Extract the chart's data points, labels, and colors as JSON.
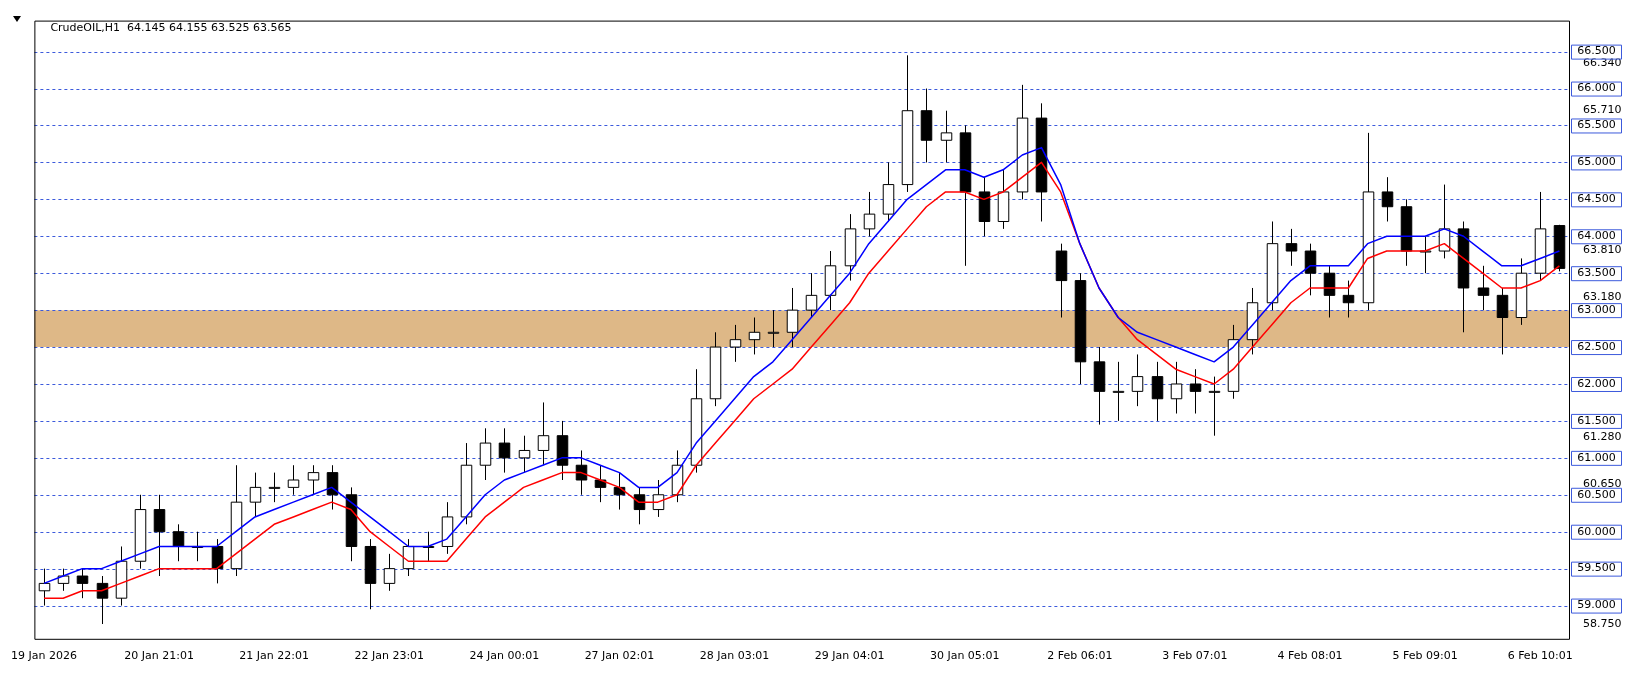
{
  "chart_data": {
    "type": "candlestick",
    "title": "CrudeOIL,H1  64.145 64.155 63.525 63.565",
    "categories": [
      "19 Jan 2026",
      null,
      null,
      null,
      null,
      null,
      "20 Jan 21:01",
      null,
      null,
      null,
      null,
      null,
      "21 Jan 22:01",
      null,
      null,
      null,
      null,
      null,
      "22 Jan 23:01",
      null,
      null,
      null,
      null,
      null,
      "24 Jan 00:01",
      null,
      null,
      null,
      null,
      null,
      "27 Jan 02:01",
      null,
      null,
      null,
      null,
      null,
      "28 Jan 03:01",
      null,
      null,
      null,
      null,
      null,
      "29 Jan 04:01",
      null,
      null,
      null,
      null,
      null,
      "30 Jan 05:01",
      null,
      null,
      null,
      null,
      null,
      "2 Feb 06:01",
      null,
      null,
      null,
      null,
      null,
      "3 Feb 07:01",
      null,
      null,
      null,
      null,
      null,
      "4 Feb 08:01",
      null,
      null,
      null,
      null,
      null,
      "5 Feb 09:01",
      null,
      null,
      null,
      null,
      null,
      "6 Feb 10:01",
      null
    ],
    "ohlc": [
      [
        59.2,
        59.5,
        59.0,
        59.3
      ],
      [
        59.3,
        59.5,
        59.2,
        59.4
      ],
      [
        59.4,
        59.5,
        59.1,
        59.3
      ],
      [
        59.3,
        59.4,
        58.75,
        59.1
      ],
      [
        59.1,
        59.8,
        59.0,
        59.6
      ],
      [
        59.6,
        60.5,
        59.5,
        60.3
      ],
      [
        60.3,
        60.5,
        59.4,
        60.0
      ],
      [
        60.0,
        60.1,
        59.6,
        59.8
      ],
      [
        59.8,
        60.0,
        59.6,
        59.8
      ],
      [
        59.8,
        59.9,
        59.3,
        59.5
      ],
      [
        59.5,
        60.9,
        59.4,
        60.4
      ],
      [
        60.4,
        60.8,
        60.2,
        60.6
      ],
      [
        60.6,
        60.8,
        60.4,
        60.6
      ],
      [
        60.6,
        60.9,
        60.5,
        60.7
      ],
      [
        60.7,
        60.9,
        60.5,
        60.8
      ],
      [
        60.8,
        60.9,
        60.3,
        60.5
      ],
      [
        60.5,
        60.6,
        59.6,
        59.8
      ],
      [
        59.8,
        59.9,
        58.95,
        59.3
      ],
      [
        59.3,
        59.7,
        59.2,
        59.5
      ],
      [
        59.5,
        59.9,
        59.4,
        59.8
      ],
      [
        59.8,
        60.0,
        59.6,
        59.8
      ],
      [
        59.8,
        60.4,
        59.7,
        60.2
      ],
      [
        60.2,
        61.2,
        60.1,
        60.9
      ],
      [
        60.9,
        61.4,
        60.7,
        61.2
      ],
      [
        61.2,
        61.4,
        60.8,
        61.0
      ],
      [
        61.0,
        61.3,
        60.8,
        61.1
      ],
      [
        61.1,
        61.75,
        60.9,
        61.3
      ],
      [
        61.3,
        61.5,
        60.7,
        60.9
      ],
      [
        60.9,
        61.1,
        60.5,
        60.7
      ],
      [
        60.7,
        60.9,
        60.4,
        60.6
      ],
      [
        60.6,
        60.8,
        60.3,
        60.5
      ],
      [
        60.5,
        60.6,
        60.1,
        60.3
      ],
      [
        60.3,
        60.7,
        60.2,
        60.5
      ],
      [
        60.5,
        61.1,
        60.4,
        60.9
      ],
      [
        60.9,
        62.2,
        60.8,
        61.8
      ],
      [
        61.8,
        62.7,
        61.7,
        62.5
      ],
      [
        62.5,
        62.8,
        62.3,
        62.6
      ],
      [
        62.6,
        62.9,
        62.4,
        62.7
      ],
      [
        62.7,
        63.0,
        62.5,
        62.7
      ],
      [
        62.7,
        63.3,
        62.5,
        63.0
      ],
      [
        63.0,
        63.5,
        62.9,
        63.2
      ],
      [
        63.2,
        63.8,
        63.0,
        63.6
      ],
      [
        63.6,
        64.3,
        63.4,
        64.1
      ],
      [
        64.1,
        64.6,
        64.0,
        64.3
      ],
      [
        64.3,
        65.0,
        64.2,
        64.7
      ],
      [
        64.7,
        66.45,
        64.6,
        65.7
      ],
      [
        65.7,
        66.0,
        65.0,
        65.3
      ],
      [
        65.3,
        65.7,
        65.0,
        65.4
      ],
      [
        65.4,
        65.5,
        63.6,
        64.6
      ],
      [
        64.6,
        64.8,
        64.0,
        64.2
      ],
      [
        64.2,
        64.9,
        64.1,
        64.6
      ],
      [
        64.6,
        66.05,
        64.5,
        65.6
      ],
      [
        65.6,
        65.8,
        64.2,
        64.6
      ],
      [
        63.8,
        63.9,
        62.9,
        63.4
      ],
      [
        63.4,
        63.5,
        62.0,
        62.3
      ],
      [
        62.3,
        62.5,
        61.45,
        61.9
      ],
      [
        61.9,
        62.3,
        61.5,
        61.9
      ],
      [
        61.9,
        62.4,
        61.7,
        62.1
      ],
      [
        62.1,
        62.3,
        61.5,
        61.8
      ],
      [
        61.8,
        62.3,
        61.6,
        62.0
      ],
      [
        62.0,
        62.2,
        61.6,
        61.9
      ],
      [
        61.9,
        62.1,
        61.3,
        61.9
      ],
      [
        61.9,
        62.8,
        61.8,
        62.6
      ],
      [
        62.6,
        63.3,
        62.4,
        63.1
      ],
      [
        63.1,
        64.2,
        63.0,
        63.9
      ],
      [
        63.9,
        64.1,
        63.6,
        63.8
      ],
      [
        63.8,
        63.9,
        63.2,
        63.5
      ],
      [
        63.5,
        63.6,
        62.9,
        63.2
      ],
      [
        63.2,
        63.4,
        62.9,
        63.1
      ],
      [
        63.1,
        65.4,
        63.0,
        64.6
      ],
      [
        64.6,
        64.8,
        64.2,
        64.4
      ],
      [
        64.4,
        64.5,
        63.6,
        63.8
      ],
      [
        63.8,
        64.0,
        63.5,
        63.8
      ],
      [
        63.8,
        64.7,
        63.7,
        64.1
      ],
      [
        64.1,
        64.2,
        62.7,
        63.3
      ],
      [
        63.3,
        63.6,
        63.0,
        63.2
      ],
      [
        63.2,
        63.3,
        62.4,
        62.9
      ],
      [
        62.9,
        63.7,
        62.8,
        63.5
      ],
      [
        63.5,
        64.6,
        63.4,
        64.1
      ],
      [
        64.145,
        64.155,
        63.525,
        63.565
      ]
    ],
    "series": [
      {
        "type": "line",
        "color": "#0000ff",
        "values": [
          59.3,
          59.4,
          59.5,
          59.5,
          59.6,
          59.7,
          59.8,
          59.8,
          59.8,
          59.8,
          60.0,
          60.2,
          60.3,
          60.4,
          60.5,
          60.6,
          60.4,
          60.2,
          60.0,
          59.8,
          59.8,
          59.9,
          60.2,
          60.5,
          60.7,
          60.8,
          60.9,
          61.0,
          61.0,
          60.9,
          60.8,
          60.6,
          60.6,
          60.8,
          61.2,
          61.5,
          61.8,
          62.1,
          62.3,
          62.6,
          62.9,
          63.2,
          63.5,
          63.9,
          64.2,
          64.5,
          64.7,
          64.9,
          64.9,
          64.8,
          64.9,
          65.1,
          65.2,
          64.7,
          63.9,
          63.3,
          62.9,
          62.7,
          62.6,
          62.5,
          62.4,
          62.3,
          62.5,
          62.8,
          63.1,
          63.4,
          63.6,
          63.6,
          63.6,
          63.9,
          64.0,
          64.0,
          64.0,
          64.1,
          64.0,
          63.8,
          63.6,
          63.6,
          63.7,
          63.8
        ]
      },
      {
        "type": "line",
        "color": "#ff0000",
        "values": [
          59.1,
          59.1,
          59.2,
          59.2,
          59.3,
          59.4,
          59.5,
          59.5,
          59.5,
          59.5,
          59.7,
          59.9,
          60.1,
          60.2,
          60.3,
          60.4,
          60.3,
          60.0,
          59.8,
          59.6,
          59.6,
          59.6,
          59.9,
          60.2,
          60.4,
          60.6,
          60.7,
          60.8,
          60.8,
          60.7,
          60.6,
          60.4,
          60.4,
          60.5,
          60.9,
          61.2,
          61.5,
          61.8,
          62.0,
          62.2,
          62.5,
          62.8,
          63.1,
          63.5,
          63.8,
          64.1,
          64.4,
          64.6,
          64.6,
          64.5,
          64.6,
          64.8,
          65.0,
          64.6,
          63.9,
          63.3,
          62.9,
          62.6,
          62.4,
          62.2,
          62.1,
          62.0,
          62.2,
          62.5,
          62.8,
          63.1,
          63.3,
          63.3,
          63.3,
          63.7,
          63.8,
          63.8,
          63.8,
          63.9,
          63.7,
          63.5,
          63.3,
          63.3,
          63.4,
          63.6
        ]
      }
    ],
    "ylim": [
      58.55,
      66.92
    ],
    "yticks": [
      {
        "value": 58.75,
        "label": "58.750"
      },
      {
        "value": 60.65,
        "label": "60.650"
      },
      {
        "value": 61.28,
        "label": "61.280"
      },
      {
        "value": 63.18,
        "label": "63.180"
      },
      {
        "value": 63.81,
        "label": "63.810"
      },
      {
        "value": 65.71,
        "label": "65.710"
      },
      {
        "value": 66.34,
        "label": "66.340"
      }
    ],
    "ref_lines": [
      {
        "axis": "y",
        "value": 59.0,
        "label": "59.000",
        "color": "#3c5adc",
        "line_style": "dashed"
      },
      {
        "axis": "y",
        "value": 59.5,
        "label": "59.500",
        "color": "#3c5adc",
        "line_style": "dashed"
      },
      {
        "axis": "y",
        "value": 60.0,
        "label": "60.000",
        "color": "#3c5adc",
        "line_style": "dashed"
      },
      {
        "axis": "y",
        "value": 60.5,
        "label": "60.500",
        "color": "#3c5adc",
        "line_style": "dashed"
      },
      {
        "axis": "y",
        "value": 61.0,
        "label": "61.000",
        "color": "#3c5adc",
        "line_style": "dashed"
      },
      {
        "axis": "y",
        "value": 61.5,
        "label": "61.500",
        "color": "#3c5adc",
        "line_style": "dashed"
      },
      {
        "axis": "y",
        "value": 62.0,
        "label": "62.000",
        "color": "#3c5adc",
        "line_style": "dashed"
      },
      {
        "axis": "y",
        "value": 62.5,
        "label": "62.500",
        "color": "#3c5adc",
        "line_style": "dashed"
      },
      {
        "axis": "y",
        "value": 63.0,
        "label": "63.000",
        "color": "#3c5adc",
        "line_style": "dashed"
      },
      {
        "axis": "y",
        "value": 63.5,
        "label": "63.500",
        "color": "#3c5adc",
        "line_style": "dashed"
      },
      {
        "axis": "y",
        "value": 64.0,
        "label": "64.000",
        "color": "#3c5adc",
        "line_style": "dashed"
      },
      {
        "axis": "y",
        "value": 64.5,
        "label": "64.500",
        "color": "#3c5adc",
        "line_style": "dashed"
      },
      {
        "axis": "y",
        "value": 65.0,
        "label": "65.000",
        "color": "#3c5adc",
        "line_style": "dashed"
      },
      {
        "axis": "y",
        "value": 65.5,
        "label": "65.500",
        "color": "#3c5adc",
        "line_style": "dashed"
      },
      {
        "axis": "y",
        "value": 66.0,
        "label": "66.000",
        "color": "#3c5adc",
        "line_style": "dashed"
      },
      {
        "axis": "y",
        "value": 66.5,
        "label": "66.500",
        "color": "#3c5adc",
        "line_style": "dashed"
      }
    ],
    "bands": [
      {
        "axis": "y",
        "from": 62.5,
        "to": 63.0,
        "color": "#deb887"
      }
    ]
  }
}
